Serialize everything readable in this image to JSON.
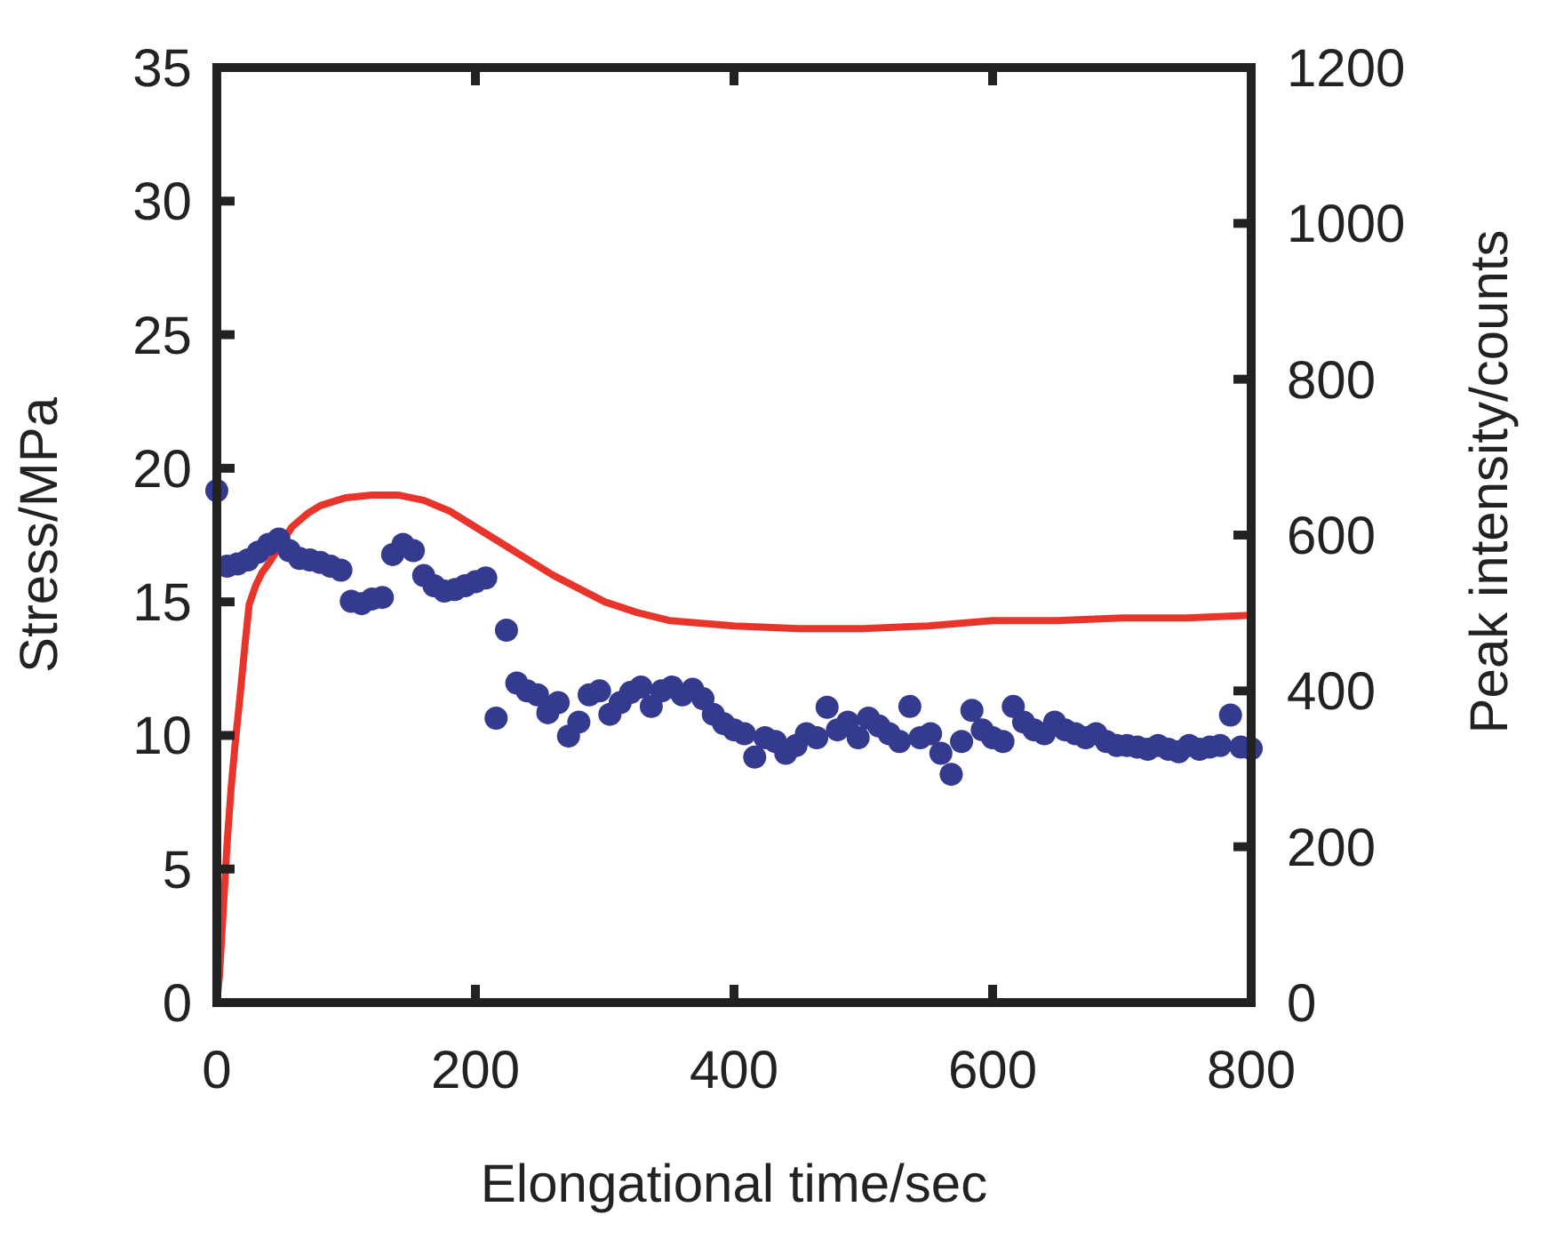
{
  "chart_data": {
    "type": "line",
    "xlabel": "Elongational time/sec",
    "ylabel": "Stress/MPa",
    "y2label": "Peak intensity/counts",
    "xlim": [
      0,
      800
    ],
    "xticks": [
      0,
      200,
      400,
      600,
      800
    ],
    "ylim": [
      0,
      35
    ],
    "yticks": [
      0,
      5,
      10,
      15,
      20,
      25,
      30,
      35
    ],
    "y2lim": [
      0,
      1200
    ],
    "y2ticks": [
      0,
      200,
      400,
      600,
      800,
      1000,
      1200
    ],
    "series": [
      {
        "color": "#e8342a",
        "marker": "none",
        "line_style": "solid",
        "x": [
          0,
          2,
          5,
          8,
          11,
          14,
          18,
          22,
          25,
          30,
          35,
          41,
          50,
          58,
          70,
          80,
          100,
          120,
          140,
          160,
          180,
          200,
          220,
          240,
          260,
          280,
          300,
          325,
          350,
          375,
          400,
          450,
          500,
          550,
          600,
          650,
          700,
          750,
          800
        ],
        "values": [
          0,
          1,
          3.5,
          6,
          8,
          9.6,
          11.5,
          13.5,
          14.9,
          15.6,
          16.1,
          16.5,
          17.2,
          17.8,
          18.3,
          18.6,
          18.9,
          19.0,
          19.0,
          18.8,
          18.4,
          17.8,
          17.2,
          16.6,
          16.0,
          15.5,
          15.0,
          14.6,
          14.3,
          14.2,
          14.1,
          14.0,
          14.0,
          14.1,
          14.3,
          14.3,
          14.4,
          14.4,
          14.5
        ]
      },
      {
        "type": "scatter",
        "axis": "y2",
        "color": "#343b8e",
        "marker": "circle",
        "x": [
          0,
          8,
          16,
          24,
          32,
          40,
          48,
          56,
          64,
          72,
          80,
          88,
          96,
          104,
          112,
          120,
          128,
          136,
          144,
          152,
          160,
          168,
          176,
          184,
          192,
          200,
          208,
          216,
          224,
          232,
          240,
          248,
          256,
          264,
          272,
          280,
          288,
          296,
          304,
          312,
          320,
          328,
          336,
          344,
          352,
          360,
          368,
          376,
          384,
          392,
          400,
          408,
          416,
          424,
          432,
          440,
          448,
          456,
          464,
          472,
          480,
          488,
          496,
          504,
          512,
          520,
          528,
          536,
          544,
          552,
          560,
          568,
          576,
          584,
          592,
          600,
          608,
          616,
          624,
          632,
          640,
          648,
          656,
          664,
          672,
          680,
          688,
          696,
          704,
          712,
          720,
          728,
          736,
          744,
          752,
          760,
          768,
          776,
          784,
          792,
          800
        ],
        "values": [
          657,
          560,
          563,
          568,
          578,
          588,
          595,
          580,
          570,
          568,
          565,
          560,
          555,
          515,
          512,
          518,
          520,
          575,
          588,
          580,
          548,
          535,
          528,
          530,
          535,
          540,
          545,
          365,
          478,
          410,
          400,
          395,
          372,
          385,
          342,
          360,
          395,
          400,
          370,
          385,
          398,
          405,
          380,
          400,
          405,
          395,
          402,
          390,
          370,
          358,
          350,
          345,
          315,
          340,
          335,
          320,
          330,
          345,
          340,
          379,
          350,
          360,
          340,
          365,
          355,
          345,
          335,
          380,
          340,
          345,
          320,
          293,
          335,
          375,
          350,
          340,
          335,
          380,
          360,
          350,
          345,
          360,
          350,
          345,
          340,
          345,
          335,
          330,
          330,
          328,
          325,
          330,
          325,
          322,
          330,
          325,
          328,
          330,
          369,
          328,
          326
        ]
      }
    ]
  }
}
